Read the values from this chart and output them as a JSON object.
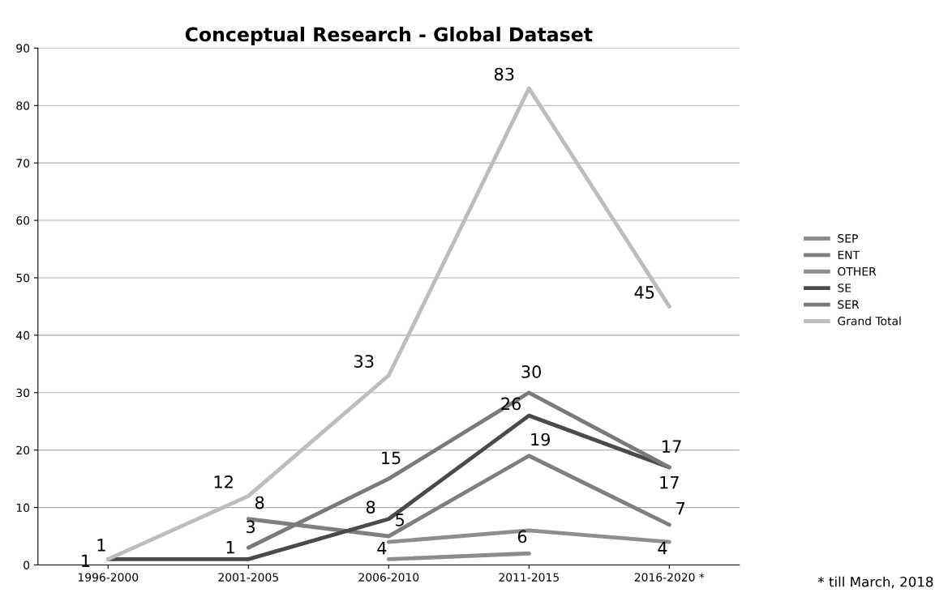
{
  "chart_data": {
    "type": "line",
    "title": "Conceptual Research - Global Dataset",
    "categories": [
      "1996-2000",
      "2001-2005",
      "2006-2010",
      "2011-2015",
      "2016-2020 *"
    ],
    "series": [
      {
        "name": "SEP",
        "color": "#8c8c8c",
        "values": [
          null,
          null,
          1,
          2,
          null
        ],
        "value_labels": [
          null,
          null,
          null,
          null,
          null
        ]
      },
      {
        "name": "ENT",
        "color": "#7f7f7f",
        "values": [
          null,
          8,
          5,
          19,
          7
        ],
        "value_labels": [
          null,
          "8",
          "5",
          "19",
          "7"
        ]
      },
      {
        "name": "OTHER",
        "color": "#8e8e8e",
        "values": [
          null,
          null,
          4,
          6,
          4
        ],
        "value_labels": [
          null,
          null,
          "4",
          "6",
          "4"
        ]
      },
      {
        "name": "SE",
        "color": "#4a4a4a",
        "values": [
          1,
          1,
          8,
          26,
          17
        ],
        "value_labels": [
          "1",
          "1",
          "8",
          "26",
          "17"
        ]
      },
      {
        "name": "SER",
        "color": "#7a7a7a",
        "values": [
          null,
          3,
          15,
          30,
          17
        ],
        "value_labels": [
          null,
          "3",
          "15",
          "30",
          "17"
        ]
      },
      {
        "name": "Grand Total",
        "color": "#bdbdbd",
        "values": [
          1,
          12,
          33,
          83,
          45
        ],
        "value_labels": [
          "1",
          "12",
          "33",
          "83",
          "45"
        ]
      }
    ],
    "ylim": [
      0,
      90
    ],
    "yticks": [
      0,
      10,
      20,
      30,
      40,
      50,
      60,
      70,
      80,
      90
    ],
    "grid": "y",
    "legend": "right",
    "marker": "none",
    "line_style": "solid",
    "annotations": [
      "* till March, 2018"
    ]
  }
}
